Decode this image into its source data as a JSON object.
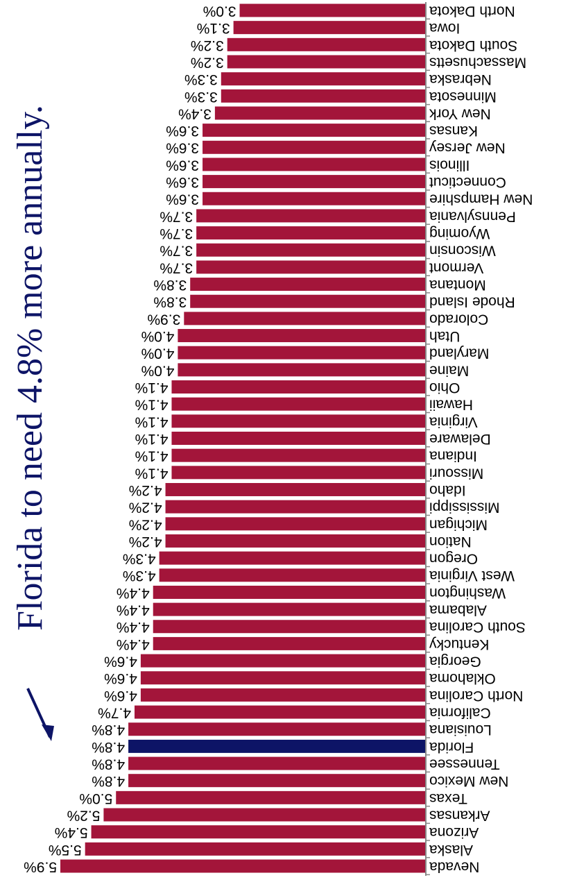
{
  "chart_data": {
    "type": "bar",
    "orientation": "horizontal",
    "rotated": true,
    "title": "Florida to need 4.8% more annually.",
    "title_color": "#0d1466",
    "categories": [
      "North Dakota",
      "Iowa",
      "South Dakota",
      "Massachusetts",
      "Nebraska",
      "Minnesota",
      "New York",
      "Kansas",
      "New Jersey",
      "Illinois",
      "Connecticut",
      "New Hampshire",
      "Pennsylvania",
      "Wyoming",
      "Wisconsin",
      "Vermont",
      "Montana",
      "Rhode Island",
      "Colorado",
      "Utah",
      "Maryland",
      "Maine",
      "Ohio",
      "Hawaii",
      "Virginia",
      "Delaware",
      "Indiana",
      "Missouri",
      "Idaho",
      "Mississippi",
      "Michigan",
      "Nation",
      "Oregon",
      "West Virginia",
      "Washington",
      "Alabama",
      "South Carolina",
      "Kentucky",
      "Georgia",
      "Oklahoma",
      "North Carolina",
      "California",
      "Louisiana",
      "Florida",
      "Tennessee",
      "New Mexico",
      "Texas",
      "Arkansas",
      "Arizona",
      "Alaska",
      "Nevada"
    ],
    "values": [
      3.0,
      3.1,
      3.2,
      3.2,
      3.3,
      3.3,
      3.4,
      3.6,
      3.6,
      3.6,
      3.6,
      3.6,
      3.7,
      3.7,
      3.7,
      3.7,
      3.8,
      3.8,
      3.9,
      4.0,
      4.0,
      4.0,
      4.1,
      4.1,
      4.1,
      4.1,
      4.1,
      4.1,
      4.2,
      4.2,
      4.2,
      4.2,
      4.3,
      4.3,
      4.4,
      4.4,
      4.4,
      4.4,
      4.6,
      4.6,
      4.6,
      4.7,
      4.8,
      4.8,
      4.8,
      4.8,
      5.0,
      5.2,
      5.4,
      5.5,
      5.9
    ],
    "value_labels": [
      "3.0%",
      "3.1%",
      "3.2%",
      "3.2%",
      "3.3%",
      "3.3%",
      "3.4%",
      "3.6%",
      "3.6%",
      "3.6%",
      "3.6%",
      "3.6%",
      "3.7%",
      "3.7%",
      "3.7%",
      "3.7%",
      "3.8%",
      "3.8%",
      "3.9%",
      "4.0%",
      "4.0%",
      "4.0%",
      "4.1%",
      "4.1%",
      "4.1%",
      "4.1%",
      "4.1%",
      "4.1%",
      "4.2%",
      "4.2%",
      "4.2%",
      "4.2%",
      "4.3%",
      "4.3%",
      "4.4%",
      "4.4%",
      "4.4%",
      "4.4%",
      "4.6%",
      "4.6%",
      "4.6%",
      "4.7%",
      "4.8%",
      "4.8%",
      "4.8%",
      "4.8%",
      "5.0%",
      "5.2%",
      "5.4%",
      "5.5%",
      "5.9%"
    ],
    "colors": [
      "#a3153a",
      "#a3153a",
      "#a3153a",
      "#a3153a",
      "#a3153a",
      "#a3153a",
      "#a3153a",
      "#a3153a",
      "#a3153a",
      "#a3153a",
      "#a3153a",
      "#a3153a",
      "#a3153a",
      "#a3153a",
      "#a3153a",
      "#a3153a",
      "#a3153a",
      "#a3153a",
      "#a3153a",
      "#a3153a",
      "#a3153a",
      "#a3153a",
      "#a3153a",
      "#a3153a",
      "#a3153a",
      "#a3153a",
      "#a3153a",
      "#a3153a",
      "#a3153a",
      "#a3153a",
      "#a3153a",
      "#a3153a",
      "#a3153a",
      "#a3153a",
      "#a3153a",
      "#a3153a",
      "#a3153a",
      "#a3153a",
      "#a3153a",
      "#a3153a",
      "#a3153a",
      "#a3153a",
      "#a3153a",
      "#0d1466",
      "#a3153a",
      "#a3153a",
      "#a3153a",
      "#a3153a",
      "#a3153a",
      "#a3153a",
      "#a3153a"
    ],
    "xlim": [
      0,
      5.9
    ]
  }
}
